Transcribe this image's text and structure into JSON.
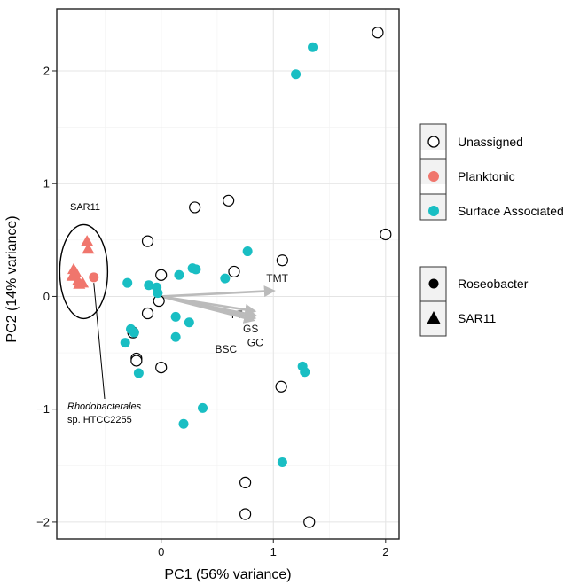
{
  "chart_data": {
    "type": "scatter",
    "xlabel": "PC1 (56% variance)",
    "ylabel": "PC2 (14% variance)",
    "xlim": [
      -0.93,
      2.12
    ],
    "ylim": [
      -2.15,
      2.55
    ],
    "xticks": [
      0,
      1,
      2
    ],
    "yticks": [
      -2,
      -1,
      0,
      1,
      2
    ],
    "grid": true,
    "legend_placement": "right",
    "colors": {
      "Unassigned": "#ffffff",
      "Planktonic": "#f0766d",
      "Surface Associated": "#19bec3",
      "vector": "#bbbbbb"
    },
    "legends": [
      {
        "title": "",
        "entries": [
          "Unassigned",
          "Planktonic",
          "Surface Associated"
        ]
      },
      {
        "title": "",
        "entries": [
          "Roseobacter",
          "SAR11"
        ]
      }
    ],
    "series": [
      {
        "name": "Unassigned",
        "shape": "Roseobacter",
        "points": [
          [
            1.93,
            2.34
          ],
          [
            0.6,
            0.85
          ],
          [
            0.3,
            0.79
          ],
          [
            -0.12,
            0.49
          ],
          [
            0.0,
            0.19
          ],
          [
            0.65,
            0.22
          ],
          [
            1.08,
            0.32
          ],
          [
            2.0,
            0.55
          ],
          [
            -0.02,
            -0.04
          ],
          [
            -0.12,
            -0.15
          ],
          [
            -0.25,
            -0.32
          ],
          [
            -0.22,
            -0.55
          ],
          [
            -0.22,
            -0.57
          ],
          [
            0.0,
            -0.63
          ],
          [
            1.07,
            -0.8
          ],
          [
            0.75,
            -1.65
          ],
          [
            0.75,
            -1.93
          ],
          [
            1.32,
            -2.0
          ]
        ]
      },
      {
        "name": "Planktonic",
        "shape": "Roseobacter",
        "points": [
          [
            -0.6,
            0.17
          ]
        ]
      },
      {
        "name": "Planktonic",
        "shape": "SAR11",
        "points": [
          [
            -0.66,
            0.49
          ],
          [
            -0.65,
            0.42
          ],
          [
            -0.78,
            0.24
          ],
          [
            -0.76,
            0.21
          ],
          [
            -0.79,
            0.18
          ],
          [
            -0.74,
            0.14
          ],
          [
            -0.73,
            0.11
          ],
          [
            -0.7,
            0.12
          ]
        ]
      },
      {
        "name": "Surface Associated",
        "shape": "Roseobacter",
        "points": [
          [
            1.35,
            2.21
          ],
          [
            1.2,
            1.97
          ],
          [
            0.77,
            0.4
          ],
          [
            -0.3,
            0.12
          ],
          [
            -0.11,
            0.1
          ],
          [
            -0.04,
            0.08
          ],
          [
            0.16,
            0.19
          ],
          [
            0.28,
            0.25
          ],
          [
            0.31,
            0.24
          ],
          [
            0.57,
            0.16
          ],
          [
            -0.03,
            0.03
          ],
          [
            0.13,
            -0.18
          ],
          [
            0.25,
            -0.23
          ],
          [
            -0.27,
            -0.29
          ],
          [
            -0.24,
            -0.32
          ],
          [
            0.13,
            -0.36
          ],
          [
            -0.32,
            -0.41
          ],
          [
            -0.2,
            -0.68
          ],
          [
            1.26,
            -0.62
          ],
          [
            1.28,
            -0.67
          ],
          [
            0.37,
            -0.99
          ],
          [
            0.2,
            -1.13
          ],
          [
            1.08,
            -1.47
          ]
        ]
      }
    ],
    "vectors": [
      {
        "label": "TMT",
        "x": 1.0,
        "y": 0.05
      },
      {
        "label": "TT",
        "x": 0.83,
        "y": -0.13
      },
      {
        "label": "GS",
        "x": 0.84,
        "y": -0.17
      },
      {
        "label": "GC",
        "x": 0.83,
        "y": -0.19
      },
      {
        "label": "BSC",
        "x": 0.82,
        "y": -0.21
      }
    ],
    "annotations": {
      "group_label": "SAR11",
      "strain_genus": "Rhodobacterales",
      "strain_name": "sp. HTCC2255"
    }
  }
}
